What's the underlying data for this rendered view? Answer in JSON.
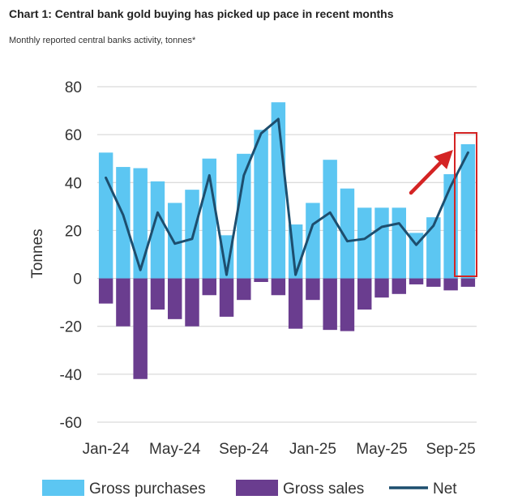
{
  "title": "Chart 1: Central bank gold buying has picked up pace in recent months",
  "subtitle": "Monthly reported central banks activity, tonnes*",
  "colors": {
    "purchases": "#5cc6f2",
    "sales": "#6a3d8f",
    "net": "#1d4e6e",
    "annotation": "#d42424",
    "axis_text": "#333333",
    "grid": "#d0d0d0"
  },
  "chart_data": {
    "type": "bar",
    "ylabel": "Tonnes",
    "ylim": [
      -60,
      80
    ],
    "yticks": [
      -60,
      -40,
      -20,
      0,
      20,
      40,
      60,
      80
    ],
    "grid": "horizontal",
    "legend_position": "bottom",
    "months": [
      "Jan-24",
      "Feb-24",
      "Mar-24",
      "Apr-24",
      "May-24",
      "Jun-24",
      "Jul-24",
      "Aug-24",
      "Sep-24",
      "Oct-24",
      "Nov-24",
      "Dec-24",
      "Jan-25",
      "Feb-25",
      "Mar-25",
      "Apr-25",
      "May-25",
      "Jun-25",
      "Jul-25",
      "Aug-25",
      "Sep-25",
      "Oct-25"
    ],
    "x_tick_labels": [
      {
        "label": "Jan-24",
        "index": 0
      },
      {
        "label": "May-24",
        "index": 4
      },
      {
        "label": "Sep-24",
        "index": 8
      },
      {
        "label": "Jan-25",
        "index": 12
      },
      {
        "label": "May-25",
        "index": 16
      },
      {
        "label": "Sep-25",
        "index": 20
      }
    ],
    "series": [
      {
        "name": "Gross purchases",
        "kind": "bar",
        "values": [
          52.5,
          46.5,
          46,
          40.5,
          31.5,
          37,
          50,
          18,
          52,
          62,
          73.5,
          22.5,
          31.5,
          49.5,
          37.5,
          29.5,
          29.5,
          29.5,
          19,
          25.5,
          43.5,
          56
        ]
      },
      {
        "name": "Gross sales",
        "kind": "bar",
        "values": [
          -10.5,
          -20,
          -42,
          -13,
          -17,
          -20,
          -7,
          -16,
          -9,
          -1.5,
          -7,
          -21,
          -9,
          -21.5,
          -22,
          -13,
          -8,
          -6.5,
          -2.5,
          -3.5,
          -5,
          -3.5
        ]
      },
      {
        "name": "Net",
        "kind": "line",
        "values": [
          42,
          26.5,
          3.5,
          27.5,
          14.5,
          16.5,
          43,
          1.5,
          43,
          60.5,
          66.5,
          1.5,
          22.5,
          27.5,
          15.5,
          16.5,
          21.5,
          23,
          14,
          22,
          38.5,
          52.5
        ]
      }
    ]
  }
}
